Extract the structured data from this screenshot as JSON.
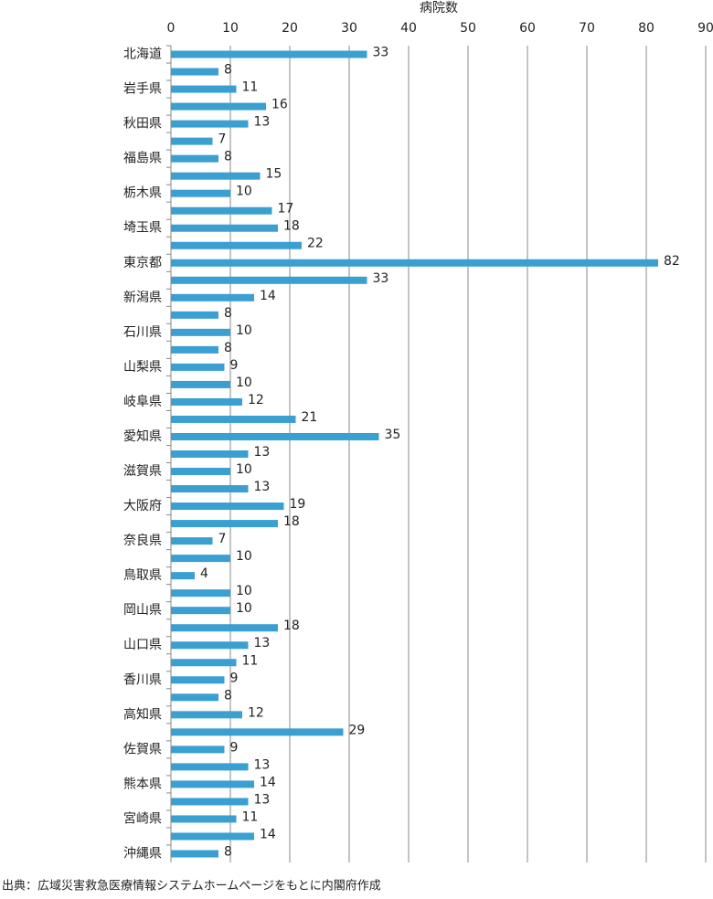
{
  "chart_data": {
    "type": "bar",
    "orientation": "horizontal",
    "title": "病院数",
    "categories": [
      "北海道",
      null,
      "岩手県",
      null,
      "秋田県",
      null,
      "福島県",
      null,
      "栃木県",
      null,
      "埼玉県",
      null,
      "東京都",
      null,
      "新潟県",
      null,
      "石川県",
      null,
      "山梨県",
      null,
      "岐阜県",
      null,
      "愛知県",
      null,
      "滋賀県",
      null,
      "大阪府",
      null,
      "奈良県",
      null,
      "鳥取県",
      null,
      "岡山県",
      null,
      "山口県",
      null,
      "香川県",
      null,
      "高知県",
      null,
      "佐賀県",
      null,
      "熊本県",
      null,
      "宮崎県",
      null,
      "沖縄県"
    ],
    "values": [
      33,
      8,
      11,
      16,
      13,
      7,
      8,
      15,
      10,
      17,
      18,
      22,
      82,
      33,
      14,
      8,
      10,
      8,
      9,
      10,
      12,
      21,
      35,
      13,
      10,
      13,
      19,
      18,
      7,
      10,
      4,
      10,
      10,
      18,
      13,
      11,
      9,
      8,
      12,
      29,
      9,
      13,
      14,
      13,
      11,
      14,
      8
    ],
    "color": "#3a9fd1",
    "xlim": [
      0,
      90
    ],
    "xticks": [
      0,
      10,
      20,
      30,
      40,
      50,
      60,
      70,
      80,
      90
    ],
    "grid": true,
    "source": "出典：広域災害救急医療情報システムホームページをもとに内閣府作成"
  }
}
